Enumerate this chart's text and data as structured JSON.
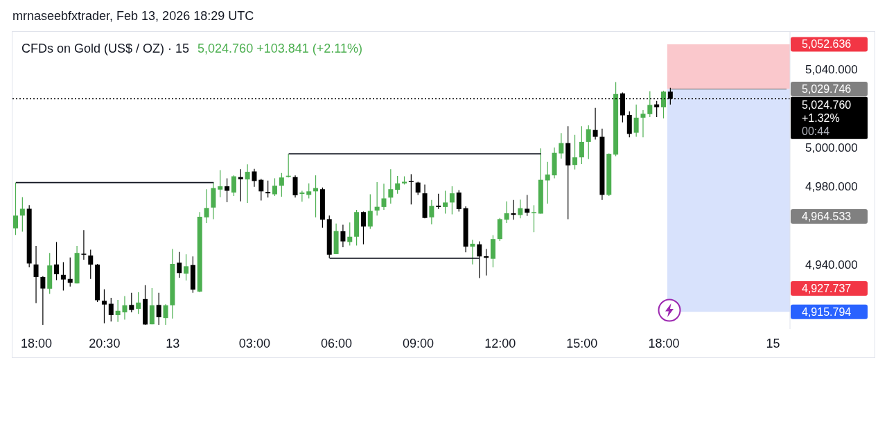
{
  "chart_data": {
    "type": "candlestick",
    "title": "CFDs on Gold (US$ / OZ) · 15",
    "subtitle": "5,024.760  +103.841 (+2.11%)",
    "annotations": [
      "mrnaseebfxtrader, Feb 13, 2026 18:29 UTC",
      "4,964.533",
      "4,927.737"
    ],
    "categories": [
      null,
      null,
      null,
      "18:00",
      null,
      null,
      null,
      null,
      null,
      null,
      null,
      null,
      null,
      "20:30",
      null,
      null,
      null,
      null,
      null,
      null,
      null,
      null,
      null,
      "13",
      null,
      null,
      null,
      null,
      null,
      null,
      null,
      null,
      null,
      null,
      null,
      "03:00",
      null,
      null,
      null,
      null,
      null,
      null,
      null,
      null,
      null,
      null,
      null,
      "06:00",
      null,
      null,
      null,
      null,
      null,
      null,
      null,
      null,
      null,
      null,
      null,
      "09:00",
      null,
      null,
      null,
      null,
      null,
      null,
      null,
      null,
      null,
      null,
      null,
      "12:00",
      null,
      null,
      null,
      null,
      null,
      null,
      null,
      null,
      null,
      null,
      null,
      "15:00",
      null,
      null,
      null,
      null,
      null,
      null,
      null,
      null,
      null,
      null,
      null,
      "18:00",
      null,
      null,
      null,
      null,
      null,
      null,
      null,
      null,
      null,
      null,
      null,
      null,
      null,
      null,
      null,
      "15",
      null,
      null
    ],
    "ohlc": [
      [
        4958.5,
        4981.9,
        4955.1,
        4965.0
      ],
      [
        4965.0,
        4974.4,
        4956.8,
        4968.5
      ],
      [
        4968.5,
        4970.3,
        4938.5,
        4940.5
      ],
      [
        4940.0,
        4949.5,
        4920.2,
        4933.6
      ],
      [
        4933.6,
        4934.0,
        4909.1,
        4927.7
      ],
      [
        4927.6,
        4945.9,
        4925.0,
        4939.5
      ],
      [
        4940.0,
        4951.5,
        4932.0,
        4935.0
      ],
      [
        4934.7,
        4941.2,
        4926.7,
        4932.3
      ],
      [
        4932.6,
        4943.6,
        4928.7,
        4930.6
      ],
      [
        4930.3,
        4949.5,
        4930.3,
        4945.9
      ],
      [
        4945.5,
        4957.6,
        4942.4,
        4945.0
      ],
      [
        4944.6,
        4947.6,
        4932.6,
        4939.9
      ],
      [
        4939.9,
        4940.3,
        4920.8,
        4921.7
      ],
      [
        4921.4,
        4927.3,
        4909.9,
        4919.5
      ],
      [
        4919.9,
        4922.9,
        4910.8,
        4914.1
      ],
      [
        4914.1,
        4921.9,
        4910.6,
        4916.3
      ],
      [
        4915.5,
        4923.8,
        4911.8,
        4919.1
      ],
      [
        4919.3,
        4925.5,
        4915.5,
        4916.7
      ],
      [
        4917.3,
        4925.8,
        4914.7,
        4920.5
      ],
      [
        4922.3,
        4929.4,
        4909.1,
        4909.3
      ],
      [
        4909.4,
        4927.9,
        4909.4,
        4919.1
      ],
      [
        4919.3,
        4925.5,
        4909.1,
        4913.0
      ],
      [
        4912.6,
        4919.7,
        4909.1,
        4919.1
      ],
      [
        4919.1,
        4947.9,
        4912.3,
        4940.3
      ],
      [
        4940.9,
        4946.4,
        4933.2,
        4935.6
      ],
      [
        4935.3,
        4945.2,
        4931.8,
        4939.1
      ],
      [
        4939.7,
        4944.1,
        4925.5,
        4927.1
      ],
      [
        4926.1,
        4966.8,
        4925.8,
        4964.4
      ],
      [
        4964.1,
        4978.5,
        4961.2,
        4968.9
      ],
      [
        4969.1,
        4981.9,
        4963.2,
        4979.1
      ],
      [
        4978.3,
        4988.2,
        4974.4,
        4980.0
      ],
      [
        4980.0,
        4984.1,
        4971.8,
        4977.7
      ],
      [
        4976.8,
        4985.6,
        4975.0,
        4985.1
      ],
      [
        4984.7,
        4988.8,
        4972.3,
        4983.6
      ],
      [
        4983.5,
        4991.2,
        4971.5,
        4987.4
      ],
      [
        4987.6,
        4988.9,
        4979.7,
        4982.7
      ],
      [
        4983.3,
        4983.8,
        4972.7,
        4977.4
      ],
      [
        4977.1,
        4982.9,
        4974.2,
        4976.4
      ],
      [
        4975.9,
        4984.1,
        4975.0,
        4980.3
      ],
      [
        4980.3,
        4986.8,
        4974.7,
        4984.5
      ],
      [
        4984.8,
        4996.6,
        4984.5,
        4985.4
      ],
      [
        4984.7,
        4985.6,
        4974.2,
        4975.4
      ],
      [
        4976.1,
        4977.7,
        4972.1,
        4976.8
      ],
      [
        4975.6,
        4981.5,
        4973.8,
        4977.4
      ],
      [
        4977.4,
        4985.6,
        4964.1,
        4979.1
      ],
      [
        4978.5,
        4979.4,
        4958.8,
        4962.9
      ],
      [
        4963.2,
        4965.0,
        4943.2,
        4945.0
      ],
      [
        4945.3,
        4960.9,
        4945.3,
        4957.1
      ],
      [
        4957.0,
        4960.3,
        4948.8,
        4951.8
      ],
      [
        4951.5,
        4961.5,
        4949.7,
        4954.2
      ],
      [
        4954.2,
        4967.9,
        4949.7,
        4966.8
      ],
      [
        4966.8,
        4967.1,
        4950.3,
        4959.4
      ],
      [
        4959.4,
        4975.9,
        4958.2,
        4967.4
      ],
      [
        4967.6,
        4982.1,
        4965.0,
        4969.5
      ],
      [
        4969.4,
        4981.3,
        4967.9,
        4973.8
      ],
      [
        4974.2,
        4988.8,
        4971.1,
        4978.5
      ],
      [
        4978.2,
        4985.3,
        4976.2,
        4981.5
      ],
      [
        4981.5,
        4985.1,
        4980.9,
        4982.3
      ],
      [
        4982.7,
        4986.2,
        4970.7,
        4982.2
      ],
      [
        4981.9,
        4982.3,
        4975.6,
        4976.8
      ],
      [
        4976.4,
        4980.9,
        4963.6,
        4963.8
      ],
      [
        4964.1,
        4973.0,
        4960.5,
        4970.0
      ],
      [
        4970.1,
        4976.2,
        4968.4,
        4969.4
      ],
      [
        4969.4,
        4977.7,
        4966.0,
        4971.7
      ],
      [
        4971.7,
        4980.0,
        4965.6,
        4976.4
      ],
      [
        4976.8,
        4978.0,
        4967.1,
        4968.3
      ],
      [
        4968.8,
        4969.7,
        4946.2,
        4949.1
      ],
      [
        4949.1,
        4952.6,
        4940.0,
        4950.6
      ],
      [
        4950.3,
        4951.8,
        4933.0,
        4944.1
      ],
      [
        4944.2,
        4947.9,
        4934.4,
        4943.4
      ],
      [
        4942.9,
        4955.0,
        4938.5,
        4953.0
      ],
      [
        4953.0,
        4963.8,
        4952.0,
        4963.2
      ],
      [
        4962.9,
        4972.3,
        4961.2,
        4966.2
      ],
      [
        4966.2,
        4973.0,
        4962.9,
        4965.4
      ],
      [
        4965.3,
        4973.2,
        4963.6,
        4968.8
      ],
      [
        4968.5,
        4975.6,
        4964.8,
        4966.5
      ],
      [
        4966.5,
        4970.3,
        4956.5,
        4966.8
      ],
      [
        4966.0,
        4999.4,
        4966.0,
        4983.3
      ],
      [
        4983.0,
        4992.5,
        4971.1,
        4986.0
      ],
      [
        4985.6,
        4999.8,
        4984.1,
        4997.1
      ],
      [
        4996.8,
        5007.2,
        4994.2,
        5002.1
      ],
      [
        5002.1,
        5010.7,
        4963.2,
        4990.7
      ],
      [
        4990.9,
        5006.3,
        4988.6,
        4994.8
      ],
      [
        4994.8,
        5010.7,
        4991.3,
        5002.7
      ],
      [
        5002.7,
        5011.2,
        4993.9,
        5009.2
      ],
      [
        5008.8,
        5020.1,
        5003.9,
        5005.3
      ],
      [
        5005.3,
        5009.5,
        4973.0,
        4975.6
      ],
      [
        4975.6,
        4996.8,
        4975.0,
        4996.6
      ],
      [
        4996.2,
        5033.3,
        4995.4,
        5027.2
      ],
      [
        5027.5,
        5028.0,
        5012.7,
        5016.3
      ],
      [
        5016.5,
        5018.3,
        5005.1,
        5006.8
      ],
      [
        5007.4,
        5021.8,
        5005.3,
        5015.1
      ],
      [
        5015.1,
        5019.0,
        5005.1,
        5017.1
      ],
      [
        5016.9,
        5028.6,
        5015.4,
        5021.6
      ],
      [
        5021.9,
        5023.7,
        5015.4,
        5020.4
      ],
      [
        5020.4,
        5028.9,
        5014.7,
        5028.4
      ],
      [
        5028.4,
        5030.4,
        5021.8,
        5024.76
      ],
      null,
      null,
      null,
      null,
      null,
      null,
      null,
      null,
      null,
      null,
      null,
      null,
      null,
      null,
      null,
      null,
      null
    ],
    "colors": [
      "#4caf50",
      "#4caf50",
      "#000000",
      "#000000",
      "#000000",
      "#4caf50",
      "#000000",
      "#000000",
      "#000000",
      "#4caf50",
      "#000000",
      "#000000",
      "#000000",
      "#000000",
      "#000000",
      "#4caf50",
      "#4caf50",
      "#000000",
      "#4caf50",
      "#000000",
      "#4caf50",
      "#000000",
      "#4caf50",
      "#4caf50",
      "#000000",
      "#4caf50",
      "#000000",
      "#4caf50",
      "#4caf50",
      "#4caf50",
      "#4caf50",
      "#000000",
      "#4caf50",
      "#000000",
      "#4caf50",
      "#000000",
      "#000000",
      "#000000",
      "#4caf50",
      "#4caf50",
      "#4caf50",
      "#000000",
      "#4caf50",
      "#4caf50",
      "#4caf50",
      "#000000",
      "#000000",
      "#4caf50",
      "#000000",
      "#4caf50",
      "#4caf50",
      "#000000",
      "#4caf50",
      "#4caf50",
      "#4caf50",
      "#4caf50",
      "#4caf50",
      "#4caf50",
      "#000000",
      "#000000",
      "#000000",
      "#4caf50",
      "#000000",
      "#4caf50",
      "#4caf50",
      "#000000",
      "#000000",
      "#4caf50",
      "#000000",
      "#000000",
      "#4caf50",
      "#4caf50",
      "#4caf50",
      "#000000",
      "#4caf50",
      "#000000",
      "#4caf50",
      "#4caf50",
      "#4caf50",
      "#4caf50",
      "#4caf50",
      "#000000",
      "#4caf50",
      "#4caf50",
      "#4caf50",
      "#000000",
      "#000000",
      "#4caf50",
      "#4caf50",
      "#000000",
      "#000000",
      "#4caf50",
      "#4caf50",
      "#4caf50",
      "#000000",
      "#4caf50",
      "#000000",
      null,
      null,
      null,
      null,
      null,
      null,
      null,
      null,
      null,
      null,
      null,
      null,
      null,
      null,
      null,
      null,
      null
    ],
    "series": [
      {
        "type": "line",
        "color": "#131722",
        "values": [
          4981.9,
          null,
          null,
          null,
          null,
          null,
          null,
          null,
          null,
          null,
          null,
          null,
          null,
          null,
          null,
          null,
          null,
          null,
          null,
          null,
          null,
          null,
          null,
          null,
          null,
          null,
          null,
          null,
          null,
          4981.9,
          null,
          null,
          null,
          null,
          null,
          null,
          null,
          null,
          null,
          null,
          null,
          null,
          null,
          null,
          null,
          null,
          null,
          null,
          null,
          null,
          null,
          null,
          null,
          null,
          null,
          null,
          null,
          null,
          null,
          null,
          null,
          null,
          null,
          null,
          null,
          null,
          null,
          null,
          null,
          null,
          null,
          null,
          null,
          null,
          null,
          null,
          null,
          null,
          null,
          null,
          null,
          null,
          null,
          null,
          null,
          null,
          null,
          null,
          null,
          null,
          null,
          null,
          null,
          null,
          null,
          null,
          null,
          null,
          null,
          null,
          null,
          null,
          null,
          null,
          null,
          null,
          null,
          null,
          null,
          null,
          null,
          null,
          null,
          null
        ]
      },
      {
        "type": "line",
        "color": "#131722",
        "values": [
          null,
          null,
          null,
          null,
          null,
          null,
          null,
          null,
          null,
          null,
          null,
          null,
          null,
          null,
          null,
          null,
          null,
          null,
          null,
          null,
          null,
          null,
          null,
          null,
          null,
          null,
          null,
          null,
          null,
          null,
          null,
          null,
          null,
          null,
          null,
          null,
          null,
          null,
          null,
          null,
          4996.6,
          null,
          null,
          null,
          null,
          null,
          null,
          null,
          null,
          null,
          null,
          null,
          null,
          null,
          null,
          null,
          null,
          null,
          null,
          null,
          null,
          null,
          null,
          null,
          null,
          null,
          null,
          null,
          null,
          null,
          null,
          null,
          null,
          null,
          null,
          null,
          null,
          4996.6,
          null,
          null,
          null,
          null,
          null,
          null,
          null,
          null,
          null,
          null,
          null,
          null,
          null,
          null,
          null,
          null,
          null,
          null,
          null,
          null,
          null,
          null,
          null,
          null,
          null,
          null,
          null,
          null,
          null,
          null,
          null,
          null,
          null,
          null,
          null,
          null
        ]
      },
      {
        "type": "line",
        "color": "#131722",
        "values": [
          null,
          null,
          null,
          null,
          null,
          null,
          null,
          null,
          null,
          null,
          null,
          null,
          null,
          null,
          null,
          null,
          null,
          null,
          null,
          null,
          null,
          null,
          null,
          null,
          null,
          null,
          null,
          null,
          null,
          null,
          null,
          null,
          null,
          null,
          null,
          null,
          null,
          null,
          null,
          null,
          null,
          null,
          null,
          null,
          null,
          null,
          4943.2,
          null,
          null,
          null,
          null,
          null,
          null,
          null,
          null,
          null,
          null,
          null,
          null,
          null,
          null,
          null,
          null,
          null,
          null,
          null,
          null,
          null,
          4943.2,
          null,
          null,
          null,
          null,
          null,
          null,
          null,
          null,
          null,
          null,
          null,
          null,
          null,
          null,
          null,
          null,
          null,
          null,
          null,
          null,
          null,
          null,
          null,
          null,
          null,
          null,
          null,
          null,
          null,
          null,
          null,
          null,
          null,
          null,
          null,
          null,
          null,
          null,
          null,
          null,
          null,
          null,
          null,
          null,
          null
        ]
      }
    ],
    "ylim": [
      4907,
      5059
    ],
    "yticks": [
      {
        "value": 4940,
        "label": "4,940.000"
      },
      {
        "value": 4980,
        "label": "4,980.000"
      },
      {
        "value": 5000,
        "label": "5,000.000"
      },
      {
        "value": 5040,
        "label": "5,040.000"
      }
    ],
    "bands": [
      {
        "axis": "y",
        "from": 5029.746,
        "to": 5052.636,
        "label": "5,052.636",
        "color": "#fac8cc"
      },
      {
        "axis": "y",
        "from": 4915.794,
        "to": 5029.746,
        "label": "4,915.794",
        "color": "#d8e2fc"
      }
    ],
    "ref_lines": [
      {
        "axis": "y",
        "value": 5029.746,
        "label": "5,029.746",
        "color": "#808080",
        "line_style": "solid"
      },
      {
        "axis": "y",
        "value": 5024.76,
        "label": "5,024.760 +1.32% 00:44",
        "color": "#000000",
        "line_style": "dotted"
      }
    ]
  }
}
